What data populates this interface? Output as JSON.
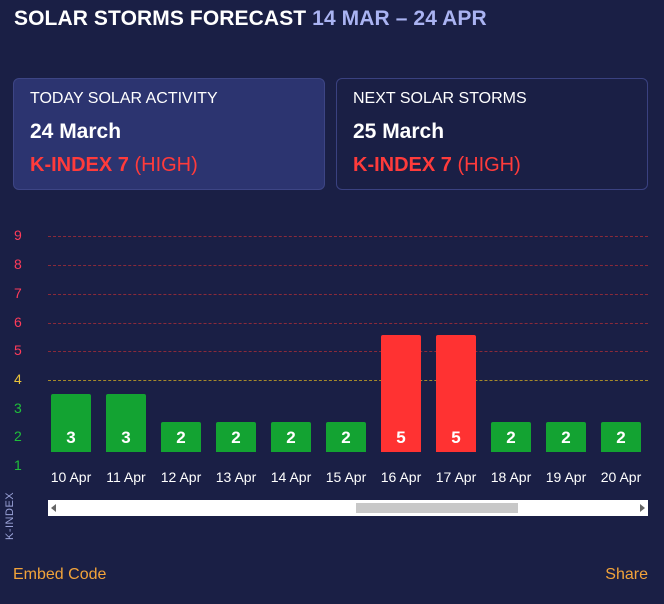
{
  "header": {
    "title": "SOLAR STORMS FORECAST",
    "range": "14 MAR – 24 APR"
  },
  "today": {
    "label": "TODAY SOLAR ACTIVITY",
    "date": "24 March",
    "kindex": "K-INDEX 7",
    "level": "(HIGH)"
  },
  "next": {
    "label": "NEXT SOLAR STORMS",
    "date": "25 March",
    "kindex": "K-INDEX 7",
    "level": "(HIGH)"
  },
  "colors": {
    "low": "#13a332",
    "high": "#ff3232",
    "y_red": "#ff3b5a",
    "y_yellow": "#e8c23a",
    "y_green": "#1fbf3a"
  },
  "chart_data": {
    "type": "bar",
    "ylabel": "K-INDEX",
    "ylim": [
      1,
      9
    ],
    "yticks": [
      "1",
      "2",
      "3",
      "4",
      "5",
      "6",
      "7",
      "8",
      "9"
    ],
    "categories": [
      "10 Apr",
      "11 Apr",
      "12 Apr",
      "13 Apr",
      "14 Apr",
      "15 Apr",
      "16 Apr",
      "17 Apr",
      "18 Apr",
      "19 Apr",
      "20 Apr"
    ],
    "values": [
      3,
      3,
      2,
      2,
      2,
      2,
      5,
      5,
      2,
      2,
      2
    ]
  },
  "scrollbar": {
    "position_fraction": 0.71
  },
  "footer": {
    "embed": "Embed Code",
    "share": "Share"
  }
}
